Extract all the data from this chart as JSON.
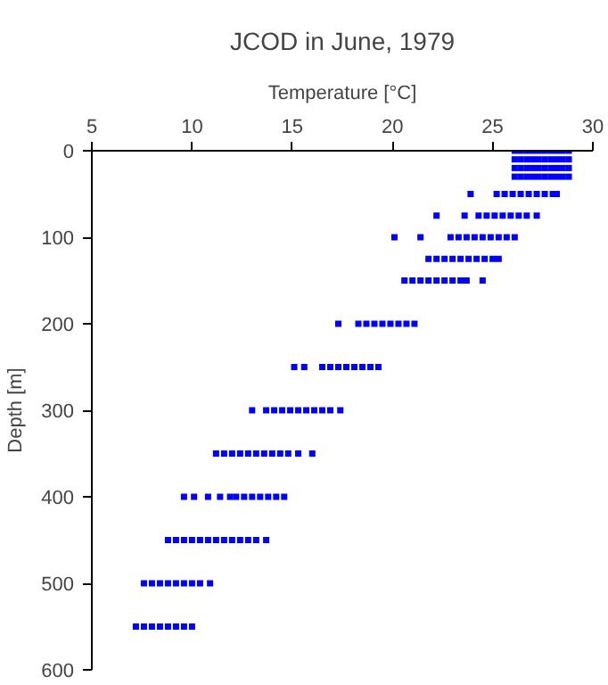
{
  "chart_data": {
    "type": "scatter",
    "title": "JCOD in June, 1979",
    "xlabel": "Temperature [°C]",
    "ylabel": "Depth [m]",
    "xlim": [
      5,
      30
    ],
    "xticks": [
      5,
      10,
      15,
      20,
      25,
      30
    ],
    "ylim": [
      600,
      0
    ],
    "yticks": [
      0,
      100,
      200,
      300,
      400,
      500,
      600
    ],
    "grid": false,
    "marker": "square",
    "series": [
      {
        "color": "#0000ff",
        "x": [
          26.1,
          26.4,
          26.7,
          27.0,
          27.3,
          27.6,
          27.9,
          28.2,
          28.5,
          28.8,
          26.1,
          26.4,
          26.7,
          27.0,
          27.3,
          27.6,
          27.9,
          28.2,
          28.5,
          28.8,
          26.1,
          26.4,
          26.7,
          27.0,
          27.3,
          27.6,
          27.9,
          28.2,
          28.5,
          28.8,
          26.1,
          26.4,
          26.7,
          27.0,
          27.3,
          27.6,
          27.9,
          28.2,
          28.5,
          28.8,
          23.9,
          25.2,
          25.6,
          26.0,
          26.4,
          26.8,
          27.2,
          27.6,
          28.0,
          28.2,
          22.2,
          23.6,
          24.3,
          24.7,
          25.1,
          25.5,
          25.9,
          26.3,
          26.7,
          27.2,
          20.1,
          21.4,
          22.9,
          23.3,
          23.7,
          24.1,
          24.5,
          24.9,
          25.3,
          25.7,
          26.1,
          21.8,
          22.2,
          22.6,
          23.0,
          23.4,
          23.8,
          24.2,
          24.6,
          25.0,
          25.3,
          20.6,
          21.0,
          21.4,
          21.8,
          22.2,
          22.6,
          23.0,
          23.4,
          23.7,
          24.5,
          17.3,
          18.3,
          18.7,
          19.1,
          19.5,
          19.9,
          20.3,
          20.7,
          21.1,
          15.1,
          15.6,
          16.5,
          16.9,
          17.3,
          17.7,
          18.1,
          18.5,
          18.9,
          19.3,
          13.0,
          13.7,
          14.1,
          14.5,
          14.9,
          15.3,
          15.7,
          16.1,
          16.5,
          16.9,
          17.4,
          11.2,
          11.6,
          12.0,
          12.4,
          12.8,
          13.2,
          13.6,
          14.0,
          14.4,
          14.8,
          15.3,
          16.0,
          9.6,
          10.1,
          10.8,
          11.4,
          11.9,
          12.2,
          12.6,
          13.0,
          13.4,
          13.8,
          14.2,
          14.6,
          8.8,
          9.2,
          9.6,
          10.0,
          10.4,
          10.8,
          11.2,
          11.6,
          12.0,
          12.4,
          12.8,
          13.2,
          13.7,
          7.6,
          8.0,
          8.4,
          8.8,
          9.2,
          9.6,
          10.0,
          10.4,
          10.9,
          7.2,
          7.6,
          8.0,
          8.4,
          8.8,
          9.2,
          9.6,
          10.0
        ],
        "values": [
          0,
          0,
          0,
          0,
          0,
          0,
          0,
          0,
          0,
          0,
          10,
          10,
          10,
          10,
          10,
          10,
          10,
          10,
          10,
          10,
          20,
          20,
          20,
          20,
          20,
          20,
          20,
          20,
          20,
          20,
          30,
          30,
          30,
          30,
          30,
          30,
          30,
          30,
          30,
          30,
          50,
          50,
          50,
          50,
          50,
          50,
          50,
          50,
          50,
          50,
          75,
          75,
          75,
          75,
          75,
          75,
          75,
          75,
          75,
          75,
          100,
          100,
          100,
          100,
          100,
          100,
          100,
          100,
          100,
          100,
          100,
          125,
          125,
          125,
          125,
          125,
          125,
          125,
          125,
          125,
          125,
          150,
          150,
          150,
          150,
          150,
          150,
          150,
          150,
          150,
          150,
          200,
          200,
          200,
          200,
          200,
          200,
          200,
          200,
          200,
          250,
          250,
          250,
          250,
          250,
          250,
          250,
          250,
          250,
          250,
          300,
          300,
          300,
          300,
          300,
          300,
          300,
          300,
          300,
          300,
          300,
          350,
          350,
          350,
          350,
          350,
          350,
          350,
          350,
          350,
          350,
          350,
          350,
          400,
          400,
          400,
          400,
          400,
          400,
          400,
          400,
          400,
          400,
          400,
          400,
          450,
          450,
          450,
          450,
          450,
          450,
          450,
          450,
          450,
          450,
          450,
          450,
          450,
          500,
          500,
          500,
          500,
          500,
          500,
          500,
          500,
          500,
          550,
          550,
          550,
          550,
          550,
          550,
          550,
          550
        ]
      }
    ]
  }
}
